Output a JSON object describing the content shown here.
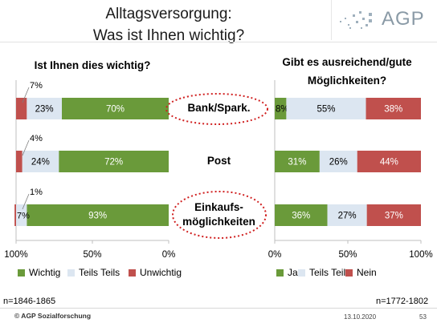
{
  "title_line1": "Alltagsversorgung:",
  "title_line2": "Was ist Ihnen wichtig?",
  "logo_text": "AGP",
  "colors": {
    "green": "#6a9a3a",
    "lightblue": "#dce6f1",
    "red": "#c0504d",
    "callout": "#d02020"
  },
  "center_labels": [
    "Bank/Spark.",
    "Post",
    "Einkaufs-",
    "möglichkeiten"
  ],
  "left_n": "n=1846-1865",
  "right_n": "n=1772-1802",
  "footer": {
    "copyright": "© AGP Sozialforschung",
    "date": "13.10.2020",
    "page": "53"
  },
  "chart_data": [
    {
      "type": "bar",
      "orientation": "horizontal-stacked",
      "axis_direction": "reversed",
      "title": "Ist Ihnen dies wichtig?",
      "categories": [
        "Bank/Spark.",
        "Post",
        "Einkaufsmöglichkeiten"
      ],
      "xlim": [
        0,
        100
      ],
      "ticks": [
        "100%",
        "50%",
        "0%"
      ],
      "series": [
        {
          "name": "Wichtig",
          "color": "#6a9a3a",
          "values": [
            70,
            72,
            93
          ],
          "labels": [
            "70%",
            "72%",
            "93%"
          ]
        },
        {
          "name": "Teils Teils",
          "color": "#dce6f1",
          "values": [
            23,
            24,
            7
          ],
          "labels": [
            "23%",
            "24%",
            "7%"
          ]
        },
        {
          "name": "Unwichtig",
          "color": "#c0504d",
          "values": [
            7,
            4,
            1
          ],
          "labels": [
            "7%",
            "4%",
            "1%"
          ]
        }
      ],
      "legend_position": "bottom"
    },
    {
      "type": "bar",
      "orientation": "horizontal-stacked",
      "title": "Gibt es ausreichend/gute Möglichkeiten?",
      "title_lines": [
        "Gibt es ausreichend/gute",
        "Möglichkeiten?"
      ],
      "categories": [
        "Bank/Spark.",
        "Post",
        "Einkaufsmöglichkeiten"
      ],
      "xlim": [
        0,
        100
      ],
      "ticks": [
        "0%",
        "50%",
        "100%"
      ],
      "series": [
        {
          "name": "Ja",
          "color": "#6a9a3a",
          "values": [
            8,
            31,
            36
          ],
          "labels": [
            "8%",
            "31%",
            "36%"
          ]
        },
        {
          "name": "Teils Teils",
          "color": "#dce6f1",
          "values": [
            55,
            26,
            27
          ],
          "labels": [
            "55%",
            "26%",
            "27%"
          ]
        },
        {
          "name": "Nein",
          "color": "#c0504d",
          "values": [
            38,
            44,
            37
          ],
          "labels": [
            "38%",
            "44%",
            "37%"
          ]
        }
      ],
      "legend_position": "bottom"
    }
  ]
}
